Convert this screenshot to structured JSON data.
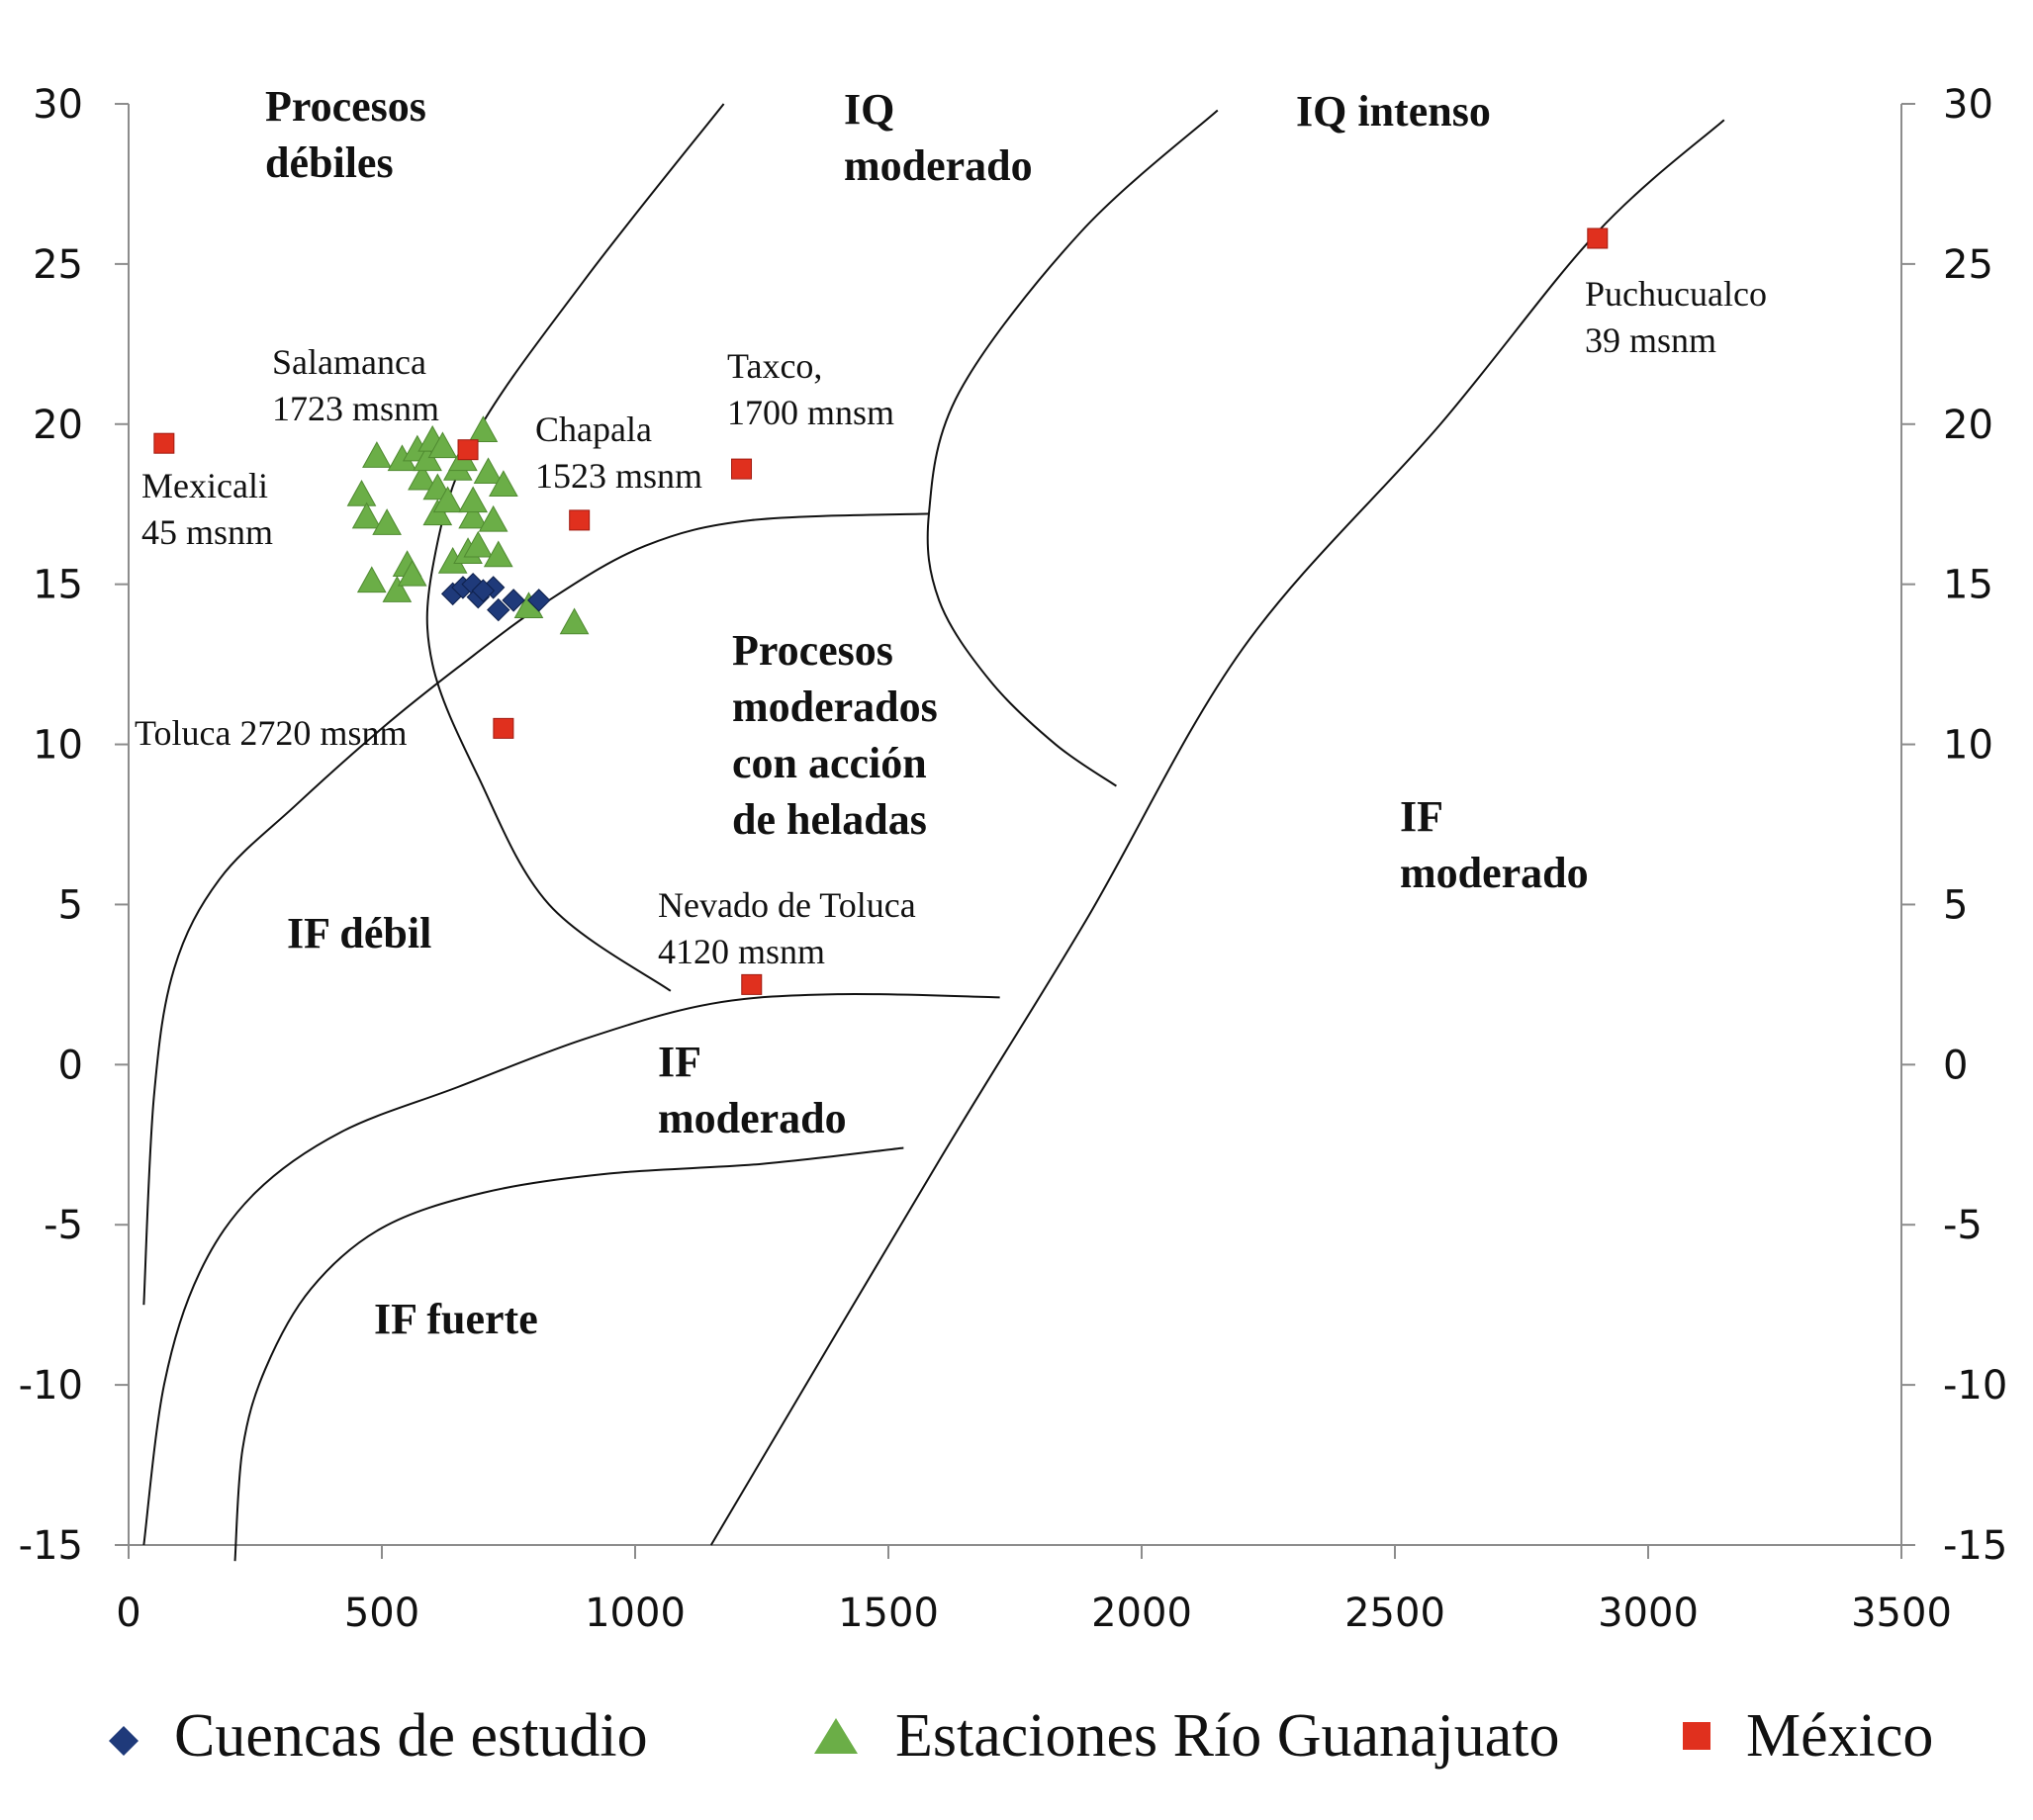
{
  "chart_data": {
    "type": "scatter",
    "title": "",
    "xlabel": "",
    "ylabel": "",
    "xlim": [
      0,
      3500
    ],
    "ylim": [
      -15,
      30
    ],
    "x_ticks": [
      "0",
      "500",
      "1000",
      "1500",
      "2000",
      "2500",
      "3000",
      "3500"
    ],
    "y_ticks": [
      "30",
      "25",
      "20",
      "15",
      "10",
      "5",
      "0",
      "-5",
      "-10",
      "-15"
    ],
    "legend_position": "bottom",
    "series": [
      {
        "name": "Cuencas  de estudio",
        "marker": "diamond",
        "color": "#1f3a7a",
        "points": [
          [
            640,
            14.7
          ],
          [
            660,
            14.9
          ],
          [
            680,
            15.0
          ],
          [
            690,
            14.6
          ],
          [
            720,
            14.9
          ],
          [
            730,
            14.2
          ],
          [
            760,
            14.5
          ],
          [
            810,
            14.5
          ],
          [
            700,
            14.8
          ]
        ]
      },
      {
        "name": "Estaciones Río Guanajuato",
        "marker": "triangle",
        "color": "#6bae47",
        "points": [
          [
            460,
            17.8
          ],
          [
            470,
            17.1
          ],
          [
            480,
            15.1
          ],
          [
            490,
            19.0
          ],
          [
            510,
            16.9
          ],
          [
            530,
            14.8
          ],
          [
            540,
            18.9
          ],
          [
            550,
            15.6
          ],
          [
            560,
            15.3
          ],
          [
            570,
            19.2
          ],
          [
            580,
            18.3
          ],
          [
            590,
            18.9
          ],
          [
            600,
            19.5
          ],
          [
            610,
            18.0
          ],
          [
            610,
            17.2
          ],
          [
            620,
            19.3
          ],
          [
            630,
            17.6
          ],
          [
            640,
            15.7
          ],
          [
            650,
            18.6
          ],
          [
            660,
            18.9
          ],
          [
            670,
            16.0
          ],
          [
            680,
            17.1
          ],
          [
            680,
            17.6
          ],
          [
            690,
            16.2
          ],
          [
            700,
            19.8
          ],
          [
            710,
            18.5
          ],
          [
            720,
            17.0
          ],
          [
            730,
            15.9
          ],
          [
            740,
            18.1
          ],
          [
            790,
            14.3
          ],
          [
            880,
            13.8
          ]
        ]
      },
      {
        "name": "México",
        "marker": "square",
        "color": "#e0301e",
        "points": [
          [
            70,
            19.4
          ],
          [
            670,
            19.2
          ],
          [
            890,
            17.0
          ],
          [
            1210,
            18.6
          ],
          [
            740,
            10.5
          ],
          [
            1230,
            2.5
          ],
          [
            2900,
            25.8
          ]
        ]
      }
    ],
    "site_labels": [
      {
        "line1": "Mexicali",
        "line2": "45 msnm"
      },
      {
        "line1": "Salamanca",
        "line2": "1723 msnm"
      },
      {
        "line1": "Chapala",
        "line2": "1523 msnm"
      },
      {
        "line1": "Taxco,",
        "line2": "1700 mnsm"
      },
      {
        "line1": "Toluca 2720 msnm",
        "line2": ""
      },
      {
        "line1": "Nevado de Toluca",
        "line2": "4120 msnm"
      },
      {
        "line1": "Puchucualco",
        "line2": "39 msnm"
      }
    ],
    "region_labels": [
      {
        "lines": [
          "Procesos",
          "débiles"
        ]
      },
      {
        "lines": [
          "IQ",
          "moderado"
        ]
      },
      {
        "lines": [
          "IQ intenso"
        ]
      },
      {
        "lines": [
          "Procesos",
          "moderados",
          "con acción",
          "de heladas"
        ]
      },
      {
        "lines": [
          "IF",
          "moderado"
        ]
      },
      {
        "lines": [
          "IF débil"
        ]
      },
      {
        "lines": [
          "IF",
          "moderado"
        ]
      },
      {
        "lines": [
          "IF  fuerte"
        ]
      }
    ],
    "boundary_curves": [
      [
        [
          1175,
          30
        ],
        [
          900,
          24.5
        ],
        [
          680,
          19.5
        ],
        [
          600,
          15.5
        ],
        [
          600,
          12.5
        ],
        [
          690,
          9
        ],
        [
          830,
          5
        ],
        [
          1070,
          2.3
        ]
      ],
      [
        [
          2150,
          29.8
        ],
        [
          1880,
          26
        ],
        [
          1640,
          21
        ],
        [
          1580,
          17.2
        ],
        [
          1600,
          14.5
        ],
        [
          1700,
          12
        ],
        [
          1830,
          10
        ],
        [
          1950,
          8.7
        ]
      ],
      [
        [
          1150,
          -15
        ],
        [
          1600,
          -3
        ],
        [
          1890,
          4.5
        ],
        [
          2200,
          13
        ],
        [
          2590,
          20
        ],
        [
          2900,
          26
        ],
        [
          3150,
          29.5
        ]
      ],
      [
        [
          30,
          -7.5
        ],
        [
          50,
          -1
        ],
        [
          90,
          3
        ],
        [
          180,
          5.8
        ],
        [
          330,
          8.1
        ],
        [
          500,
          10.5
        ],
        [
          650,
          12.4
        ],
        [
          830,
          14.5
        ],
        [
          1020,
          16.2
        ],
        [
          1230,
          17
        ],
        [
          1580,
          17.2
        ]
      ],
      [
        [
          30,
          -15
        ],
        [
          70,
          -10
        ],
        [
          140,
          -6.5
        ],
        [
          250,
          -4
        ],
        [
          420,
          -2.1
        ],
        [
          650,
          -0.7
        ],
        [
          900,
          0.8
        ],
        [
          1150,
          1.9
        ],
        [
          1400,
          2.2
        ],
        [
          1720,
          2.1
        ]
      ],
      [
        [
          210,
          -15.5
        ],
        [
          225,
          -12
        ],
        [
          270,
          -9.5
        ],
        [
          360,
          -7
        ],
        [
          500,
          -5.1
        ],
        [
          700,
          -4
        ],
        [
          950,
          -3.4
        ],
        [
          1250,
          -3.1
        ],
        [
          1530,
          -2.6
        ]
      ]
    ]
  }
}
